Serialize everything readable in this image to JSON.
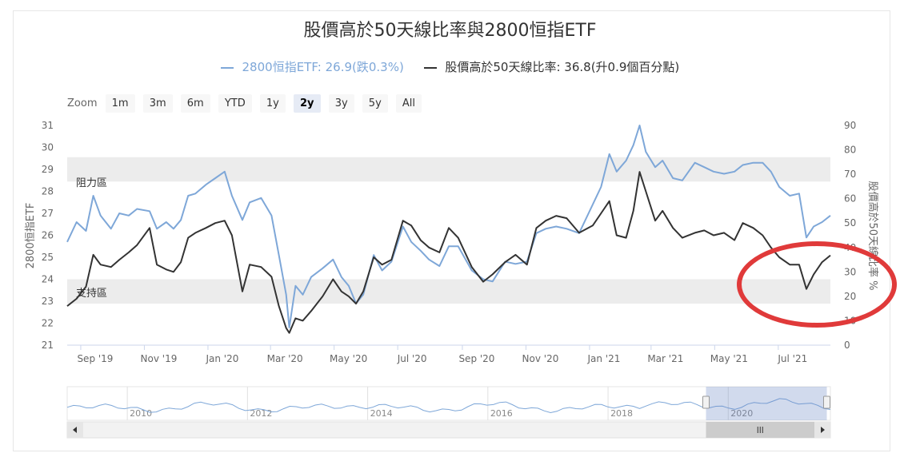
{
  "title": "股價高於50天線比率與2800恒指ETF",
  "legend": {
    "etf": "2800恒指ETF: 26.9(跌0.3%)",
    "ratio": "股價高於50天線比率: 36.8(升0.9個百分點)"
  },
  "zoom": {
    "label": "Zoom",
    "buttons": [
      "1m",
      "3m",
      "6m",
      "YTD",
      "1y",
      "2y",
      "3y",
      "5y",
      "All"
    ],
    "active": "2y"
  },
  "bands": {
    "resistance": "阻力區",
    "support": "支持區"
  },
  "colors": {
    "etf": "#7ea7d8",
    "ratio": "#333333",
    "band": "#ececec",
    "highlight": "#e03a3a"
  },
  "chart_data": {
    "type": "line",
    "title": "股價高於50天線比率與2800恒指ETF",
    "ylabel_left": "2800恒指ETF",
    "ylabel_right": "股價高於50天線比率 %",
    "ylim_left": [
      21,
      31
    ],
    "ylim_right": [
      0,
      90
    ],
    "x_range": [
      "2019-08-19",
      "2021-08-20"
    ],
    "x_ticks": [
      "Sep '19",
      "Nov '19",
      "Jan '20",
      "Mar '20",
      "May '20",
      "Jul '20",
      "Sep '20",
      "Nov '20",
      "Jan '21",
      "Mar '21",
      "May '21",
      "Jul '21"
    ],
    "y_ticks_left": [
      21,
      22,
      23,
      24,
      25,
      26,
      27,
      28,
      29,
      30,
      31
    ],
    "y_ticks_right": [
      0,
      10,
      20,
      30,
      40,
      50,
      60,
      70,
      80,
      90
    ],
    "bands": [
      {
        "label": "阻力區",
        "axis": "right",
        "from": 67,
        "to": 77
      },
      {
        "label": "支持區",
        "axis": "right",
        "from": 17,
        "to": 27
      }
    ],
    "grid": false,
    "legend_position": "top-center",
    "series": [
      {
        "name": "2800恒指ETF",
        "axis": "left",
        "points": [
          [
            "2019-08-19",
            25.7
          ],
          [
            "2019-08-28",
            26.6
          ],
          [
            "2019-09-06",
            26.2
          ],
          [
            "2019-09-13",
            27.8
          ],
          [
            "2019-09-20",
            26.9
          ],
          [
            "2019-09-30",
            26.3
          ],
          [
            "2019-10-08",
            27.0
          ],
          [
            "2019-10-17",
            26.9
          ],
          [
            "2019-10-25",
            27.2
          ],
          [
            "2019-11-06",
            27.1
          ],
          [
            "2019-11-13",
            26.3
          ],
          [
            "2019-11-22",
            26.6
          ],
          [
            "2019-11-29",
            26.3
          ],
          [
            "2019-12-06",
            26.7
          ],
          [
            "2019-12-13",
            27.8
          ],
          [
            "2019-12-20",
            27.9
          ],
          [
            "2019-12-30",
            28.3
          ],
          [
            "2020-01-08",
            28.6
          ],
          [
            "2020-01-17",
            28.9
          ],
          [
            "2020-01-24",
            27.8
          ],
          [
            "2020-02-03",
            26.7
          ],
          [
            "2020-02-10",
            27.5
          ],
          [
            "2020-02-21",
            27.7
          ],
          [
            "2020-03-02",
            26.9
          ],
          [
            "2020-03-09",
            25.1
          ],
          [
            "2020-03-16",
            23.3
          ],
          [
            "2020-03-19",
            21.8
          ],
          [
            "2020-03-25",
            23.7
          ],
          [
            "2020-04-01",
            23.3
          ],
          [
            "2020-04-09",
            24.1
          ],
          [
            "2020-04-20",
            24.5
          ],
          [
            "2020-04-30",
            24.9
          ],
          [
            "2020-05-08",
            24.1
          ],
          [
            "2020-05-15",
            23.7
          ],
          [
            "2020-05-22",
            22.9
          ],
          [
            "2020-05-29",
            23.3
          ],
          [
            "2020-06-08",
            25.1
          ],
          [
            "2020-06-16",
            24.4
          ],
          [
            "2020-06-25",
            24.8
          ],
          [
            "2020-07-06",
            26.4
          ],
          [
            "2020-07-14",
            25.7
          ],
          [
            "2020-07-23",
            25.3
          ],
          [
            "2020-07-31",
            24.9
          ],
          [
            "2020-08-10",
            24.6
          ],
          [
            "2020-08-19",
            25.5
          ],
          [
            "2020-08-28",
            25.5
          ],
          [
            "2020-09-10",
            24.4
          ],
          [
            "2020-09-21",
            24.0
          ],
          [
            "2020-09-30",
            23.9
          ],
          [
            "2020-10-12",
            24.8
          ],
          [
            "2020-10-22",
            24.7
          ],
          [
            "2020-11-02",
            24.8
          ],
          [
            "2020-11-11",
            26.1
          ],
          [
            "2020-11-20",
            26.3
          ],
          [
            "2020-11-30",
            26.4
          ],
          [
            "2020-12-10",
            26.3
          ],
          [
            "2020-12-22",
            26.1
          ],
          [
            "2021-01-04",
            27.4
          ],
          [
            "2021-01-12",
            28.2
          ],
          [
            "2021-01-20",
            29.7
          ],
          [
            "2021-01-27",
            28.9
          ],
          [
            "2021-02-05",
            29.4
          ],
          [
            "2021-02-12",
            30.1
          ],
          [
            "2021-02-18",
            31.0
          ],
          [
            "2021-02-24",
            29.8
          ],
          [
            "2021-03-05",
            29.1
          ],
          [
            "2021-03-12",
            29.4
          ],
          [
            "2021-03-22",
            28.6
          ],
          [
            "2021-03-31",
            28.5
          ],
          [
            "2021-04-12",
            29.3
          ],
          [
            "2021-04-21",
            29.1
          ],
          [
            "2021-04-30",
            28.9
          ],
          [
            "2021-05-10",
            28.8
          ],
          [
            "2021-05-20",
            28.9
          ],
          [
            "2021-05-28",
            29.2
          ],
          [
            "2021-06-07",
            29.3
          ],
          [
            "2021-06-16",
            29.3
          ],
          [
            "2021-06-24",
            28.9
          ],
          [
            "2021-07-02",
            28.2
          ],
          [
            "2021-07-12",
            27.8
          ],
          [
            "2021-07-21",
            27.9
          ],
          [
            "2021-07-28",
            25.9
          ],
          [
            "2021-08-04",
            26.4
          ],
          [
            "2021-08-12",
            26.6
          ],
          [
            "2021-08-20",
            26.9
          ]
        ]
      },
      {
        "name": "股價高於50天線比率",
        "axis": "right",
        "points": [
          [
            "2019-08-19",
            16
          ],
          [
            "2019-08-28",
            19
          ],
          [
            "2019-09-06",
            24
          ],
          [
            "2019-09-13",
            37
          ],
          [
            "2019-09-20",
            33
          ],
          [
            "2019-09-30",
            32
          ],
          [
            "2019-10-08",
            35
          ],
          [
            "2019-10-17",
            38
          ],
          [
            "2019-10-25",
            41
          ],
          [
            "2019-11-06",
            48
          ],
          [
            "2019-11-13",
            33
          ],
          [
            "2019-11-22",
            31
          ],
          [
            "2019-11-29",
            30
          ],
          [
            "2019-12-06",
            34
          ],
          [
            "2019-12-13",
            44
          ],
          [
            "2019-12-20",
            46
          ],
          [
            "2019-12-30",
            48
          ],
          [
            "2020-01-08",
            50
          ],
          [
            "2020-01-17",
            51
          ],
          [
            "2020-01-24",
            45
          ],
          [
            "2020-02-03",
            22
          ],
          [
            "2020-02-10",
            33
          ],
          [
            "2020-02-21",
            32
          ],
          [
            "2020-03-02",
            28
          ],
          [
            "2020-03-09",
            16
          ],
          [
            "2020-03-16",
            7
          ],
          [
            "2020-03-19",
            5
          ],
          [
            "2020-03-25",
            11
          ],
          [
            "2020-04-01",
            10
          ],
          [
            "2020-04-09",
            14
          ],
          [
            "2020-04-20",
            20
          ],
          [
            "2020-04-30",
            27
          ],
          [
            "2020-05-08",
            22
          ],
          [
            "2020-05-15",
            20
          ],
          [
            "2020-05-22",
            17
          ],
          [
            "2020-05-29",
            22
          ],
          [
            "2020-06-08",
            36
          ],
          [
            "2020-06-16",
            33
          ],
          [
            "2020-06-25",
            35
          ],
          [
            "2020-07-06",
            51
          ],
          [
            "2020-07-14",
            49
          ],
          [
            "2020-07-23",
            43
          ],
          [
            "2020-07-31",
            40
          ],
          [
            "2020-08-10",
            38
          ],
          [
            "2020-08-19",
            48
          ],
          [
            "2020-08-28",
            44
          ],
          [
            "2020-09-10",
            32
          ],
          [
            "2020-09-21",
            26
          ],
          [
            "2020-09-30",
            29
          ],
          [
            "2020-10-12",
            34
          ],
          [
            "2020-10-22",
            37
          ],
          [
            "2020-11-02",
            33
          ],
          [
            "2020-11-11",
            48
          ],
          [
            "2020-11-20",
            51
          ],
          [
            "2020-11-30",
            53
          ],
          [
            "2020-12-10",
            52
          ],
          [
            "2020-12-22",
            46
          ],
          [
            "2021-01-04",
            49
          ],
          [
            "2021-01-12",
            54
          ],
          [
            "2021-01-20",
            59
          ],
          [
            "2021-01-27",
            45
          ],
          [
            "2021-02-05",
            44
          ],
          [
            "2021-02-12",
            55
          ],
          [
            "2021-02-18",
            71
          ],
          [
            "2021-02-24",
            63
          ],
          [
            "2021-03-05",
            51
          ],
          [
            "2021-03-12",
            55
          ],
          [
            "2021-03-22",
            48
          ],
          [
            "2021-03-31",
            44
          ],
          [
            "2021-04-12",
            46
          ],
          [
            "2021-04-21",
            47
          ],
          [
            "2021-04-30",
            45
          ],
          [
            "2021-05-10",
            46
          ],
          [
            "2021-05-20",
            43
          ],
          [
            "2021-05-28",
            50
          ],
          [
            "2021-06-07",
            48
          ],
          [
            "2021-06-16",
            45
          ],
          [
            "2021-06-24",
            40
          ],
          [
            "2021-07-02",
            36
          ],
          [
            "2021-07-12",
            33
          ],
          [
            "2021-07-21",
            33
          ],
          [
            "2021-07-28",
            23
          ],
          [
            "2021-08-04",
            29
          ],
          [
            "2021-08-12",
            34
          ],
          [
            "2021-08-20",
            36.8
          ]
        ]
      }
    ]
  },
  "navigator": {
    "years": [
      "2010",
      "2012",
      "2014",
      "2016",
      "2018",
      "2020"
    ],
    "range_start_year": 2009,
    "range_end_year": 2021.7,
    "selected_from_year": 2019.63,
    "selected_to_year": 2021.64
  }
}
